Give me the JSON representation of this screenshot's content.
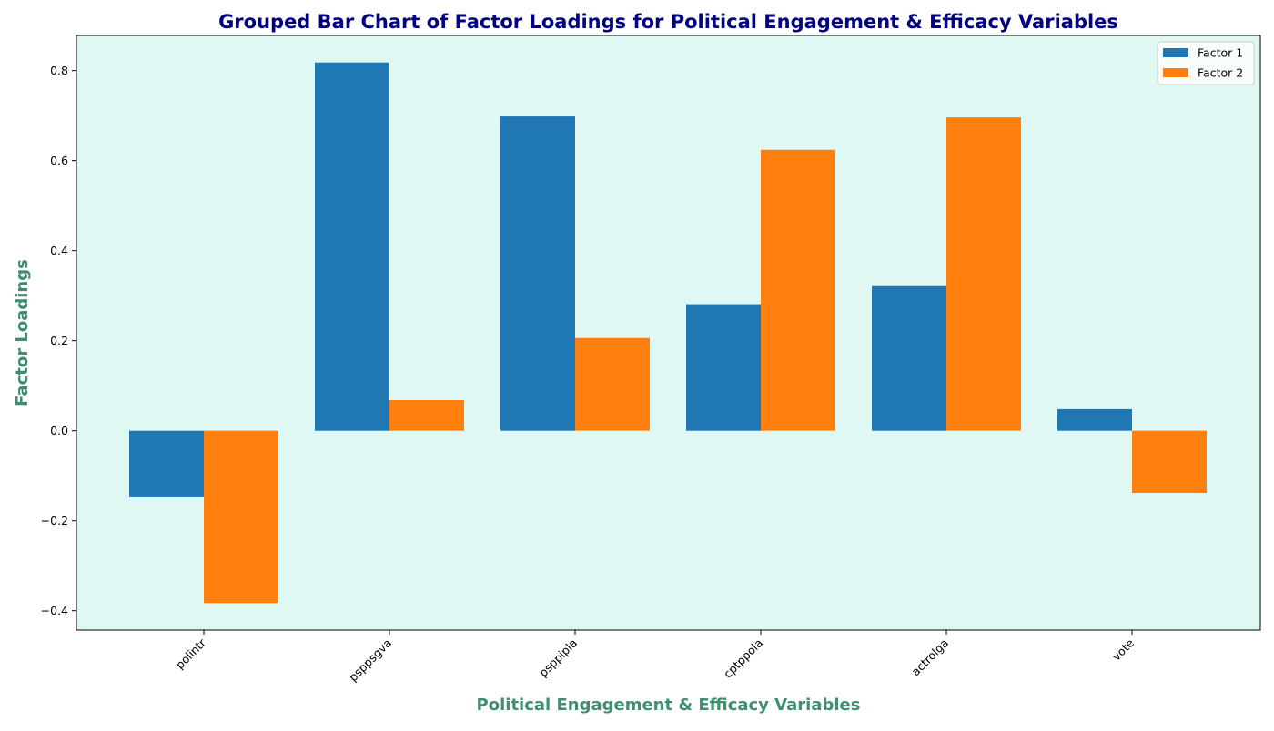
{
  "chart_data": {
    "type": "bar",
    "title": "Grouped Bar Chart of Factor Loadings for Political Engagement & Efficacy Variables",
    "xlabel": "Political Engagement & Efficacy Variables",
    "ylabel": "Factor Loadings",
    "categories": [
      "polintr",
      "psppsgva",
      "psppipla",
      "cptppola",
      "actrolga",
      "vote"
    ],
    "series": [
      {
        "name": "Factor 1",
        "color": "#1f77b4",
        "values": [
          -0.148,
          0.818,
          0.698,
          0.281,
          0.321,
          0.048
        ]
      },
      {
        "name": "Factor 2",
        "color": "#ff7f0e",
        "values": [
          -0.383,
          0.068,
          0.206,
          0.624,
          0.696,
          -0.138
        ]
      }
    ],
    "ylim": [
      -0.443,
      0.878
    ],
    "yticks": [
      -0.4,
      -0.2,
      0.0,
      0.2,
      0.4,
      0.6,
      0.8
    ],
    "ytick_labels": [
      "−0.4",
      "−0.2",
      "0.0",
      "0.2",
      "0.4",
      "0.6",
      "0.8"
    ],
    "grid": false,
    "legend_position": "top-right",
    "colors": {
      "plot_background": "#e0f8f4",
      "title": "#000080",
      "axis_label": "#3f8f6f"
    }
  }
}
